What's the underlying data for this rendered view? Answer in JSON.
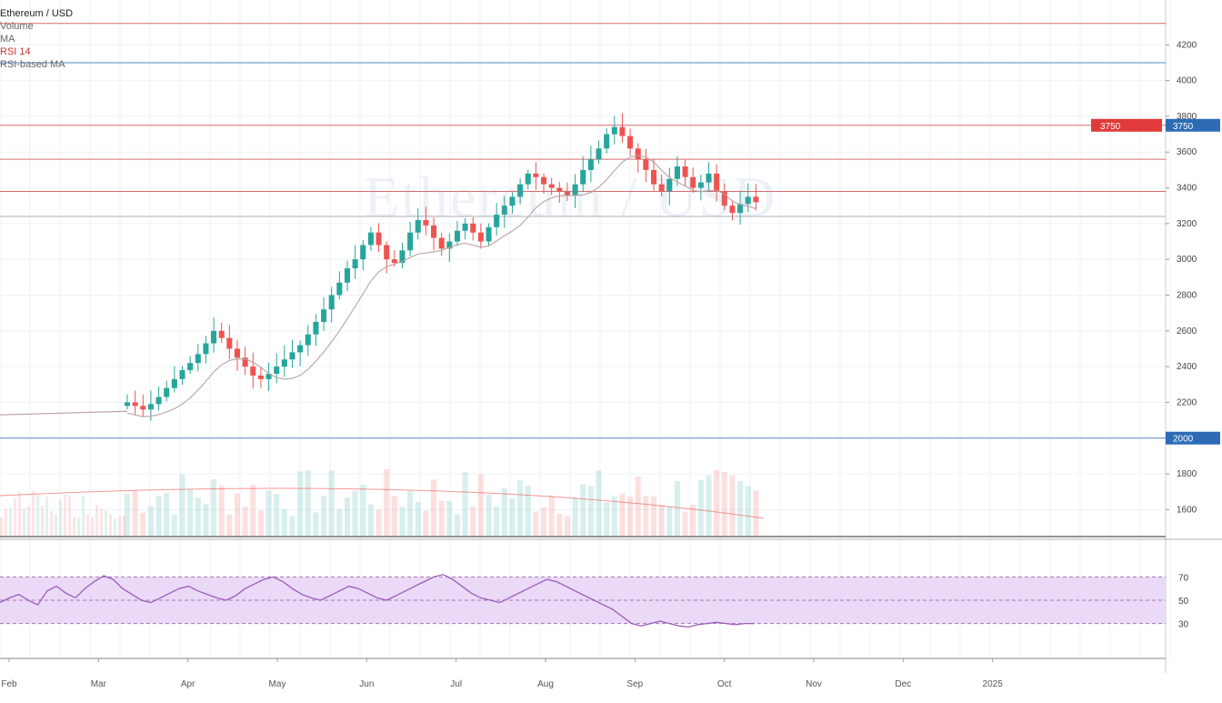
{
  "legend": {
    "title": "Ethereum / USD",
    "subtitle": "Volume",
    "indicator": "MA",
    "line3": "RSI 14",
    "line4": "RSI-based MA"
  },
  "colors": {
    "up": "#26a69a",
    "down": "#ef5350",
    "grid": "#eef2f8",
    "level_red": "#d04848",
    "level_blue": "#2d6cb5",
    "rsi_band": "#e8d2f7",
    "rsi_line": "#9c5cb8",
    "ma": "#b9a0a0"
  },
  "chart_data": {
    "type": "candlestick",
    "title": "",
    "xlabel": "",
    "ylabel": "",
    "x_ticks": [
      "Feb",
      "Mar",
      "Apr",
      "May",
      "Jun",
      "Jul",
      "Aug",
      "Sep",
      "Oct",
      "Nov",
      "Dec",
      "2025"
    ],
    "y_ticks": [
      "4200",
      "4000",
      "3800",
      "3600",
      "3400",
      "3200",
      "3000",
      "2800",
      "2600",
      "2400",
      "2200",
      "2000",
      "1800",
      "1600"
    ],
    "ylim": [
      1500,
      4400
    ],
    "closes": [
      2200,
      2180,
      2160,
      2190,
      2230,
      2280,
      2330,
      2380,
      2420,
      2470,
      2530,
      2600,
      2560,
      2500,
      2450,
      2400,
      2350,
      2330,
      2360,
      2400,
      2440,
      2480,
      2520,
      2580,
      2650,
      2720,
      2800,
      2870,
      2950,
      3000,
      3080,
      3150,
      3080,
      3000,
      2980,
      3050,
      3150,
      3220,
      3190,
      3120,
      3060,
      3100,
      3160,
      3200,
      3150,
      3100,
      3180,
      3250,
      3300,
      3350,
      3420,
      3480,
      3460,
      3420,
      3400,
      3380,
      3360,
      3420,
      3500,
      3560,
      3620,
      3700,
      3740,
      3690,
      3620,
      3560,
      3500,
      3420,
      3380,
      3450,
      3520,
      3460,
      3400,
      3430,
      3480,
      3380,
      3300,
      3260,
      3310,
      3350,
      3320
    ],
    "rsi": [
      48,
      52,
      55,
      50,
      46,
      58,
      62,
      56,
      52,
      60,
      66,
      71,
      68,
      60,
      55,
      50,
      48,
      52,
      56,
      60,
      62,
      58,
      55,
      52,
      50,
      54,
      60,
      64,
      68,
      70,
      66,
      60,
      55,
      52,
      50,
      54,
      58,
      62,
      60,
      56,
      52,
      50,
      54,
      58,
      62,
      66,
      70,
      72,
      68,
      62,
      56,
      52,
      50,
      48,
      52,
      56,
      60,
      64,
      68,
      66,
      62,
      58,
      54,
      50,
      46,
      42,
      36,
      30,
      28,
      30,
      32,
      30,
      28,
      27,
      29,
      30,
      31,
      30,
      29,
      30,
      30
    ],
    "rsi_levels": [
      70,
      50,
      30
    ],
    "price_levels": [
      {
        "value": 4320,
        "color": "red"
      },
      {
        "value": 4100,
        "color": "blue"
      },
      {
        "value": 3750,
        "color": "red"
      },
      {
        "value": 3560,
        "color": "red"
      },
      {
        "value": 3380,
        "color": "red"
      },
      {
        "value": 3240,
        "color": "gray"
      },
      {
        "value": 2000,
        "color": "blue"
      }
    ],
    "current_price_tag": "2000",
    "last_price_tag": "3750",
    "rsi_tags": [
      "70",
      "50",
      "30"
    ]
  }
}
